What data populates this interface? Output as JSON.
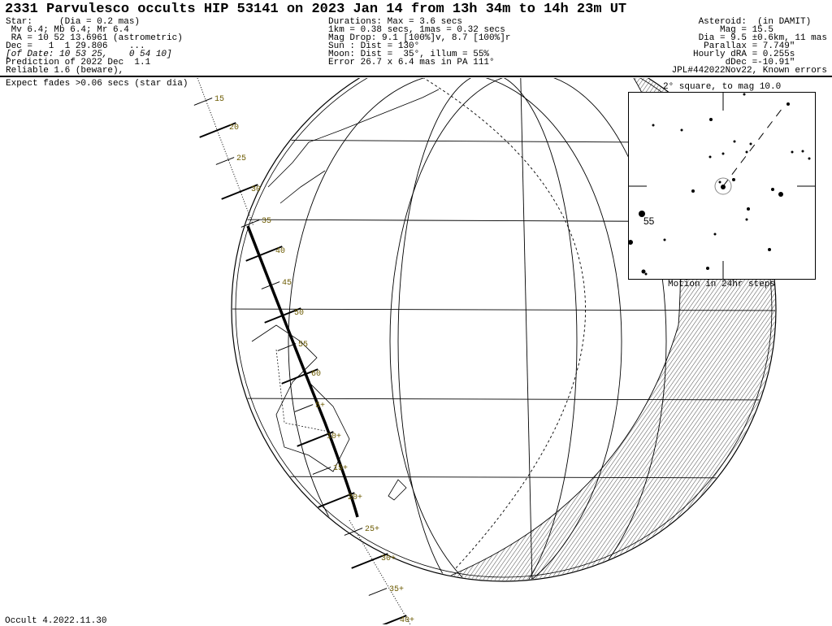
{
  "header": {
    "title": "2331 Parvulesco occults HIP 53141 on 2023 Jan 14 from 13h 34m to 14h 23m UT",
    "star": [
      "Star:     (Dia = 0.2 mas)",
      " Mv 6.4; Mb 6.4; Mr 6.4",
      " RA = 10 52 13.6961 (astrometric)",
      "Dec =   1  1 29.806    ...",
      "[of Date: 10 53 25,    0 54 10]",
      "Prediction of 2022 Dec  1.1",
      "Reliable 1.6 (beware),"
    ],
    "durations": [
      "Durations: Max = 3.6 secs",
      "1km = 0.38 secs, 1mas = 0.32 secs",
      "Mag Drop: 9.1 [100%]v, 8.7 [100%]r",
      "Sun : Dist = 130°",
      "Moon: Dist =  35°, illum = 55%",
      "Error 26.7 x 6.4 mas in PA 111°"
    ],
    "asteroid": [
      "Asteroid:  (in DAMIT)   ",
      "Mag = 15.5          ",
      "Dia = 9.5 ±0.6km, 11 mas",
      "Parallax = 7.749\"      ",
      "Hourly dRA = 0.255s      ",
      "dDec =-10.91\"      ",
      "JPL#442022Nov22, Known errors"
    ]
  },
  "notes": {
    "fades": "Expect fades >0.06 secs (star dia)",
    "footer": "Occult 4.2022.11.30"
  },
  "inset": {
    "title": "2° square, to mag 10.0",
    "star_label": "55",
    "motion": "Motion in 24hr steps"
  },
  "path_ticks": [
    "15",
    "20",
    "25",
    "30",
    "35",
    "40",
    "45",
    "50",
    "55",
    "60",
    "5+",
    "10+",
    "15+",
    "20+",
    "25+",
    "30+",
    "35+",
    "40+"
  ],
  "colors": {
    "tick_label": "#6b5a00",
    "ink": "#000000",
    "star_circle": "#888888"
  }
}
